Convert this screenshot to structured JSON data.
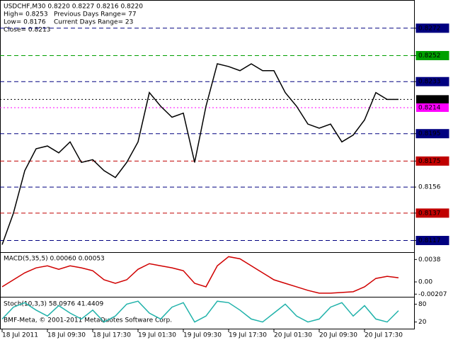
{
  "chart_data": [
    {
      "type": "line",
      "title": "USDCHF,M30  0.8220 0.8227 0.8216 0.8220",
      "annotations": [
        "High= 0.8253",
        "Previous Days Range= 77",
        "Low= 0.8176",
        "Current Days Range= 23",
        "Close= 0.8213"
      ],
      "categories": [
        "18 Jul 2011",
        null,
        null,
        null,
        "18 Jul 09:30",
        null,
        null,
        null,
        "18 Jul 17:30",
        null,
        null,
        null,
        "19 Jul 01:30",
        null,
        null,
        null,
        "19 Jul 09:30",
        null,
        null,
        null,
        "19 Jul 17:30",
        null,
        null,
        null,
        "20 Jul 01:30",
        null,
        null,
        null,
        "20 Jul 09:30",
        null,
        null,
        null,
        "20 Jul 17:30",
        null,
        null,
        null
      ],
      "series": [
        {
          "name": "USDCHF",
          "color": "#000000",
          "values": [
            0.8114,
            0.8137,
            0.8168,
            0.8184,
            0.8186,
            0.8181,
            0.8189,
            0.8174,
            0.8176,
            0.8168,
            0.8163,
            0.8174,
            0.8189,
            0.8225,
            0.8215,
            0.8207,
            0.821,
            0.8174,
            0.8215,
            0.8246,
            0.8244,
            0.8241,
            0.8246,
            0.8241,
            0.8241,
            0.8225,
            0.8215,
            0.8202,
            0.8199,
            0.8202,
            0.8189,
            0.8194,
            0.8205,
            0.8225,
            0.822,
            0.822
          ]
        }
      ],
      "ylim": [
        0.8109,
        0.829
      ],
      "yticks": [
        {
          "value": 0.8272,
          "label": "0.8272"
        },
        {
          "value": 0.8252,
          "label": "0.8252"
        },
        {
          "value": 0.8233,
          "label": "0.8233"
        },
        {
          "value": 0.8195,
          "label": "0.8195"
        },
        {
          "value": 0.8175,
          "label": "0.8175"
        },
        {
          "value": 0.8156,
          "label": "0.8156"
        },
        {
          "value": 0.8137,
          "label": "0.8137"
        },
        {
          "value": 0.8117,
          "label": "0.8117"
        }
      ],
      "ytick_colors": [
        "#000080",
        "#00a000",
        "#000080",
        "#000080",
        "#c00000",
        "#ffffff",
        "#c00000",
        "#000080"
      ],
      "markers": [
        {
          "value": 0.822,
          "label": "0.8220",
          "color": "#000000"
        },
        {
          "value": 0.8214,
          "label": "0.8214",
          "color": "#ff00ff"
        }
      ]
    },
    {
      "type": "line",
      "title": "MACD(5,35,5) 0.00060 0.00053",
      "series": [
        {
          "name": "Signal",
          "color": "#d00000",
          "values": [
            -0.00083,
            0.00036,
            0.00154,
            0.00238,
            0.00273,
            0.00214,
            0.00273,
            0.00238,
            0.0019,
            0.00036,
            -0.00024,
            0.00036,
            0.00214,
            0.00309,
            0.00273,
            0.00238,
            0.0019,
            -0.00024,
            -0.00083,
            0.00273,
            0.00428,
            0.00392,
            0.00273,
            0.00154,
            0.00036,
            -0.00024,
            -0.00083,
            -0.00143,
            -0.0019,
            -0.0019,
            -0.00178,
            -0.00166,
            -0.00083,
            0.00059,
            0.00095,
            0.00071
          ]
        }
      ],
      "ylim": [
        -0.0024,
        0.0048
      ],
      "yticks": [
        0.0038,
        {
          "value": 0,
          "label": "0.00"
        },
        -0.00207
      ]
    },
    {
      "type": "line",
      "title": "Stoch(10,3,3) 58.0976 41.4409",
      "annotations": [
        "BMF-Meta, © 2001-2011 MetaQuotes Software Corp."
      ],
      "series": [
        {
          "name": "Main",
          "color": "#20b2aa",
          "values": [
            30,
            70,
            85,
            60,
            40,
            75,
            50,
            30,
            60,
            20,
            40,
            80,
            90,
            50,
            30,
            70,
            85,
            20,
            40,
            90,
            85,
            60,
            30,
            20,
            50,
            80,
            40,
            20,
            30,
            70,
            85,
            40,
            75,
            30,
            20,
            58
          ]
        }
      ],
      "ylim": [
        0,
        100
      ],
      "yticks": [
        80,
        20
      ]
    }
  ]
}
